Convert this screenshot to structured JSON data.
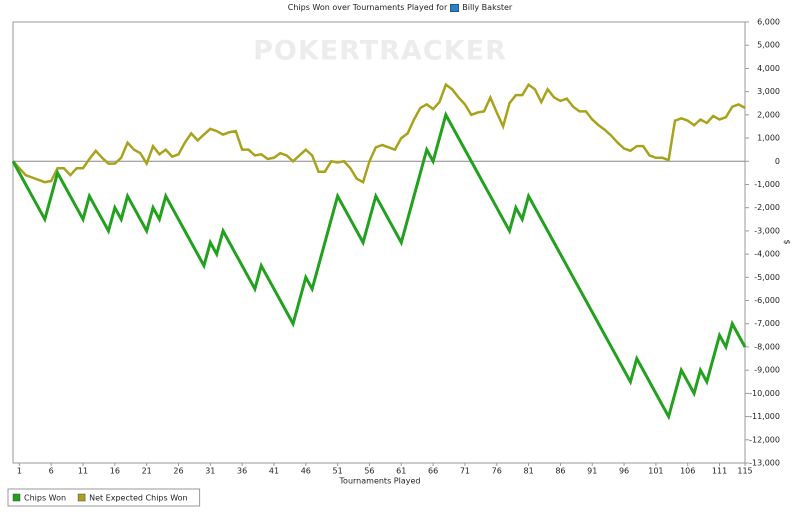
{
  "chart_data": {
    "type": "line",
    "title": "Chips Won over Tournaments Played for",
    "player": "Billy Bakster",
    "watermark": "POKERTRACKER",
    "x_label": "Tournaments Played",
    "y_label": "$",
    "legend": "bottom-left",
    "x": [
      0,
      1,
      2,
      3,
      4,
      5,
      6,
      7,
      8,
      9,
      10,
      11,
      12,
      13,
      14,
      15,
      16,
      17,
      18,
      19,
      20,
      21,
      22,
      23,
      24,
      25,
      26,
      27,
      28,
      29,
      30,
      31,
      32,
      33,
      34,
      35,
      36,
      37,
      38,
      39,
      40,
      41,
      42,
      43,
      44,
      45,
      46,
      47,
      48,
      49,
      50,
      51,
      52,
      53,
      54,
      55,
      56,
      57,
      58,
      59,
      60,
      61,
      62,
      63,
      64,
      65,
      66,
      67,
      68,
      69,
      70,
      71,
      72,
      73,
      74,
      75,
      76,
      77,
      78,
      79,
      80,
      81,
      82,
      83,
      84,
      85,
      86,
      87,
      88,
      89,
      90,
      91,
      92,
      93,
      94,
      95,
      96,
      97,
      98,
      99,
      100,
      101,
      102,
      103,
      104,
      105,
      106,
      107,
      108,
      109,
      110,
      111,
      112,
      113,
      114,
      115
    ],
    "series": [
      {
        "name": "Chips Won",
        "color": "#22a11f",
        "values": [
          0,
          -500,
          -1000,
          -1500,
          -2000,
          -2500,
          -1500,
          -500,
          -1000,
          -1500,
          -2000,
          -2500,
          -1500,
          -2000,
          -2500,
          -3000,
          -2000,
          -2500,
          -1500,
          -2000,
          -2500,
          -3000,
          -2000,
          -2500,
          -1500,
          -2000,
          -2500,
          -3000,
          -3500,
          -4000,
          -4500,
          -3500,
          -4000,
          -3000,
          -3500,
          -4000,
          -4500,
          -5000,
          -5500,
          -4500,
          -5000,
          -5500,
          -6000,
          -6500,
          -7000,
          -6000,
          -5000,
          -5500,
          -4500,
          -3500,
          -2500,
          -1500,
          -2000,
          -2500,
          -3000,
          -3500,
          -2500,
          -1500,
          -2000,
          -2500,
          -3000,
          -3500,
          -2500,
          -1500,
          -500,
          500,
          0,
          1000,
          2000,
          1500,
          1000,
          500,
          0,
          -500,
          -1000,
          -1500,
          -2000,
          -2500,
          -3000,
          -2000,
          -2500,
          -1500,
          -2000,
          -2500,
          -3000,
          -3500,
          -4000,
          -4500,
          -5000,
          -5500,
          -6000,
          -6500,
          -7000,
          -7500,
          -8000,
          -8500,
          -9000,
          -9500,
          -8500,
          -9000,
          -9500,
          -10000,
          -10500,
          -11000,
          -10000,
          -9000,
          -9500,
          -10000,
          -9000,
          -9500,
          -8500,
          -7500,
          -8000,
          -7000,
          -7500,
          -8000
        ]
      },
      {
        "name": "Net Expected Chips Won",
        "color": "#a8a21d",
        "values": [
          0,
          -300,
          -600,
          -700,
          -800,
          -900,
          -850,
          -300,
          -300,
          -600,
          -300,
          -300,
          100,
          450,
          150,
          -100,
          -100,
          150,
          800,
          500,
          350,
          -100,
          650,
          300,
          500,
          200,
          300,
          800,
          1200,
          900,
          1150,
          1400,
          1300,
          1150,
          1250,
          1300,
          500,
          500,
          250,
          300,
          100,
          150,
          350,
          250,
          0,
          250,
          500,
          250,
          -450,
          -450,
          0,
          -50,
          0,
          -300,
          -750,
          -900,
          0,
          600,
          700,
          600,
          500,
          1000,
          1200,
          1800,
          2300,
          2450,
          2250,
          2550,
          3300,
          3100,
          2750,
          2450,
          2000,
          2100,
          2150,
          2750,
          2100,
          1500,
          2500,
          2850,
          2850,
          3300,
          3100,
          2550,
          3100,
          2750,
          2600,
          2700,
          2350,
          2150,
          2150,
          1800,
          1550,
          1350,
          1100,
          800,
          550,
          450,
          650,
          650,
          250,
          150,
          150,
          50,
          1750,
          1850,
          1750,
          1550,
          1800,
          1650,
          1950,
          1800,
          1900,
          2350,
          2450,
          2300
        ]
      }
    ],
    "xlim": [
      0,
      115
    ],
    "xticks": [
      1,
      6,
      11,
      16,
      21,
      26,
      31,
      36,
      41,
      46,
      51,
      56,
      61,
      66,
      71,
      76,
      81,
      86,
      91,
      96,
      101,
      106,
      111,
      115
    ],
    "ylim": [
      -13000,
      6000
    ],
    "yticks": [
      {
        "value": 6000,
        "label": "6,000"
      },
      {
        "value": 5000,
        "label": "5,000"
      },
      {
        "value": 4000,
        "label": "4,000"
      },
      {
        "value": 3000,
        "label": "3,000"
      },
      {
        "value": 2000,
        "label": "2,000"
      },
      {
        "value": 1000,
        "label": "1,000"
      },
      0,
      {
        "value": -1000,
        "label": "-1,000"
      },
      {
        "value": -2000,
        "label": "-2,000"
      },
      {
        "value": -3000,
        "label": "-3,000"
      },
      {
        "value": -4000,
        "label": "-4,000"
      },
      {
        "value": -5000,
        "label": "-5,000"
      },
      {
        "value": -6000,
        "label": "-6,000"
      },
      {
        "value": -7000,
        "label": "-7,000"
      },
      {
        "value": -8000,
        "label": "-8,000"
      },
      {
        "value": -9000,
        "label": "-9,000"
      },
      {
        "value": -10000,
        "label": "-10,000"
      },
      {
        "value": -11000,
        "label": "-11,000"
      },
      {
        "value": -12000,
        "label": "-12,000"
      },
      {
        "value": -13000,
        "label": "-13,000"
      }
    ],
    "grid": false
  }
}
